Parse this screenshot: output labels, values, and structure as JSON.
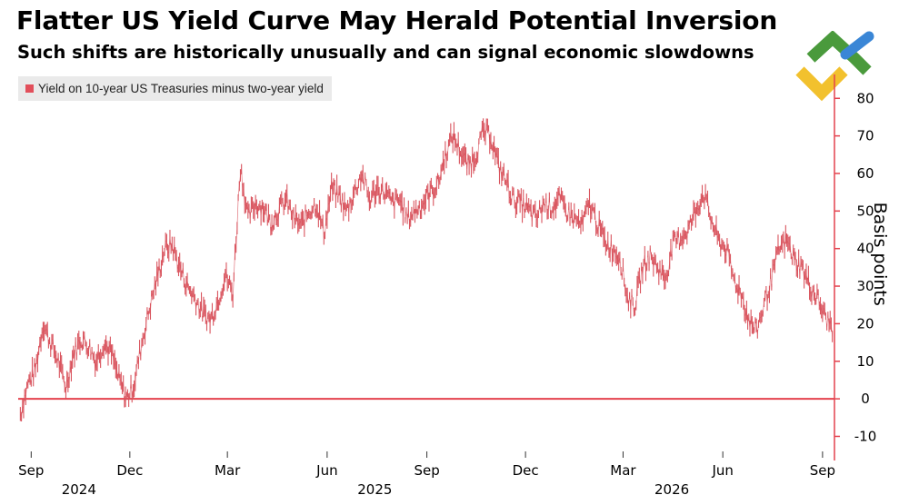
{
  "header": {
    "title": "Flatter US Yield Curve May Herald Potential Inversion",
    "subtitle": "Such shifts are historically unusually and can signal economic slowdowns"
  },
  "logo": {
    "icon": "chevron-logo-icon",
    "colors": [
      "#4a9a3c",
      "#f2c12e",
      "#3a86d6"
    ]
  },
  "colors": {
    "series": "#d9545e",
    "zero_line": "#e4424e",
    "axis": "#e4424e"
  },
  "chart_data": {
    "type": "line",
    "legend": {
      "position": "top-left",
      "entries": [
        "Yield on 10-year US Treasuries minus two-year yield"
      ]
    },
    "ylabel": "Basis points",
    "ylim": [
      -14,
      82
    ],
    "yticks": [
      -10,
      0,
      10,
      20,
      30,
      40,
      50,
      60,
      70,
      80
    ],
    "y_axis_position": "right",
    "x_tick_labels": [
      "Sep",
      "Dec",
      "Mar",
      "Jun",
      "Sep",
      "Dec",
      "Mar",
      "Jun",
      "Sep"
    ],
    "x_year_labels": [
      "2024",
      "2025",
      "2026"
    ],
    "reference_line": 0,
    "grid": false,
    "series": [
      {
        "name": "Yield on 10-year US Treasuries minus two-year yield",
        "x": [
          "2024-08-22",
          "2024-08-29",
          "2024-09-05",
          "2024-09-12",
          "2024-09-19",
          "2024-09-26",
          "2024-10-03",
          "2024-10-10",
          "2024-10-17",
          "2024-10-24",
          "2024-10-31",
          "2024-11-07",
          "2024-11-14",
          "2024-11-21",
          "2024-11-28",
          "2024-12-05",
          "2024-12-12",
          "2024-12-19",
          "2024-12-26",
          "2025-01-02",
          "2025-01-09",
          "2025-01-16",
          "2025-01-23",
          "2025-01-30",
          "2025-02-06",
          "2025-02-13",
          "2025-02-20",
          "2025-02-27",
          "2025-03-06",
          "2025-03-13",
          "2025-03-20",
          "2025-03-27",
          "2025-04-03",
          "2025-04-10",
          "2025-04-17",
          "2025-04-24",
          "2025-05-01",
          "2025-05-08",
          "2025-05-15",
          "2025-05-22",
          "2025-05-29",
          "2025-06-05",
          "2025-06-12",
          "2025-06-19",
          "2025-06-26",
          "2025-07-03",
          "2025-07-10",
          "2025-07-17",
          "2025-07-24",
          "2025-07-31",
          "2025-08-07",
          "2025-08-14",
          "2025-08-21",
          "2025-08-28",
          "2025-09-04",
          "2025-09-11",
          "2025-09-18",
          "2025-09-25",
          "2025-10-02",
          "2025-10-09",
          "2025-10-16",
          "2025-10-23",
          "2025-10-30",
          "2025-11-06",
          "2025-11-13",
          "2025-11-20",
          "2025-11-27",
          "2025-12-04",
          "2025-12-11",
          "2025-12-18",
          "2025-12-25",
          "2026-01-01",
          "2026-01-08",
          "2026-01-15",
          "2026-01-22",
          "2026-01-29",
          "2026-02-05",
          "2026-02-12",
          "2026-02-19",
          "2026-02-26",
          "2026-03-05",
          "2026-03-12",
          "2026-03-19",
          "2026-03-26",
          "2026-04-02",
          "2026-04-09",
          "2026-04-16",
          "2026-04-23",
          "2026-04-30",
          "2026-05-07",
          "2026-05-14",
          "2026-05-21",
          "2026-05-28",
          "2026-06-04",
          "2026-06-11",
          "2026-06-18",
          "2026-06-25",
          "2026-07-02",
          "2026-07-09",
          "2026-07-16",
          "2026-07-23",
          "2026-07-30",
          "2026-08-06",
          "2026-08-13",
          "2026-08-20",
          "2026-08-27",
          "2026-09-03",
          "2026-09-10"
        ],
        "y": [
          -4,
          4,
          8,
          20,
          15,
          10,
          3,
          12,
          16,
          14,
          10,
          15,
          12,
          5,
          0,
          4,
          15,
          24,
          32,
          40,
          41,
          35,
          30,
          27,
          23,
          21,
          26,
          33,
          28,
          62,
          48,
          52,
          51,
          47,
          50,
          53,
          48,
          46,
          50,
          52,
          44,
          56,
          54,
          50,
          55,
          60,
          53,
          56,
          55,
          52,
          53,
          48,
          50,
          52,
          55,
          57,
          65,
          70,
          66,
          62,
          65,
          71,
          70,
          62,
          58,
          53,
          52,
          50,
          48,
          52,
          51,
          53,
          50,
          48,
          46,
          52,
          47,
          42,
          40,
          38,
          27,
          25,
          35,
          38,
          35,
          32,
          41,
          43,
          45,
          50,
          55,
          48,
          42,
          40,
          32,
          28,
          21,
          18,
          25,
          32,
          40,
          42,
          37,
          35,
          30,
          27,
          22,
          19
        ]
      }
    ]
  }
}
